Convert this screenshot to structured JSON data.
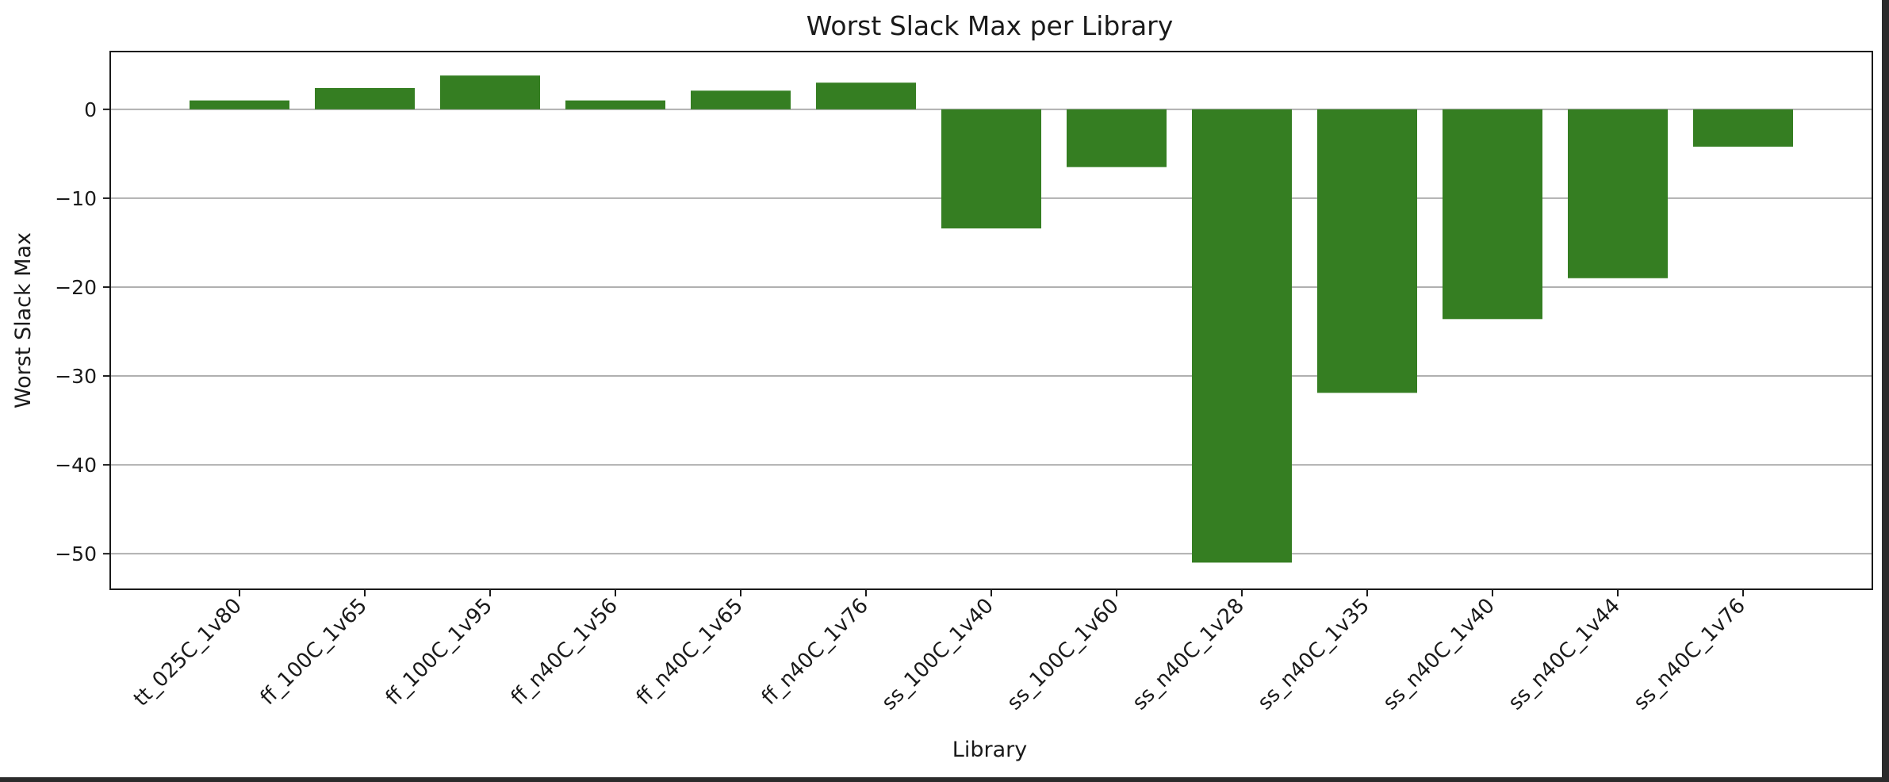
{
  "chart_data": {
    "type": "bar",
    "title": "Worst Slack Max per Library",
    "xlabel": "Library",
    "ylabel": "Worst Slack Max",
    "categories": [
      "tt_025C_1v80",
      "ff_100C_1v65",
      "ff_100C_1v95",
      "ff_n40C_1v56",
      "ff_n40C_1v65",
      "ff_n40C_1v76",
      "ss_100C_1v40",
      "ss_100C_1v60",
      "ss_n40C_1v28",
      "ss_n40C_1v35",
      "ss_n40C_1v40",
      "ss_n40C_1v44",
      "ss_n40C_1v76"
    ],
    "values": [
      1.0,
      2.4,
      3.8,
      1.0,
      2.1,
      3.0,
      -13.4,
      -6.5,
      -51.0,
      -31.9,
      -23.6,
      -19.0,
      -4.2
    ],
    "ylim": [
      -54,
      6.5
    ],
    "yticks": [
      0,
      -10,
      -20,
      -30,
      -40,
      -50
    ],
    "ytick_labels": [
      "0",
      "−10",
      "−20",
      "−30",
      "−40",
      "−50"
    ],
    "grid": "horizontal",
    "bar_color": "#357e22",
    "grid_color": "#b0b0b0",
    "axis_color": "#1a1a1a"
  }
}
